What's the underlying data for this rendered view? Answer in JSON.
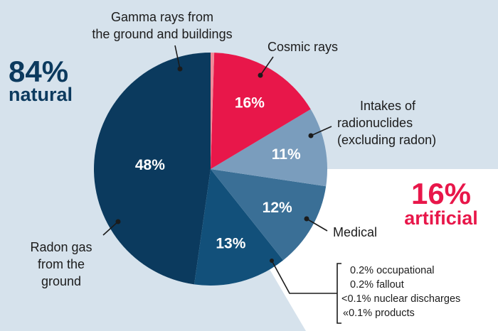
{
  "chart_data": {
    "type": "pie",
    "start_angle_deg": 90,
    "direction": "counterclockwise",
    "slices": [
      {
        "label": "Radon gas from the ground",
        "value": 48,
        "display": "48%",
        "color": "#0b3a5e",
        "group": "natural"
      },
      {
        "label": "Gamma rays from the ground and buildings",
        "value": 13,
        "display": "13%",
        "color": "#12507a",
        "group": "natural"
      },
      {
        "label": "Cosmic rays",
        "value": 12,
        "display": "12%",
        "color": "#3a6f96",
        "group": "natural"
      },
      {
        "label": "Intakes of radionuclides (excluding radon)",
        "value": 11,
        "display": "11%",
        "color": "#7a9dbd",
        "group": "natural"
      },
      {
        "label": "Medical",
        "value": 16,
        "display": "16%",
        "color": "#e8174a",
        "group": "artificial"
      },
      {
        "label": "Occupational, fallout, nuclear discharges, products",
        "value": 0.5,
        "display": "",
        "color": "#f08a98",
        "group": "artificial"
      }
    ],
    "groups": {
      "natural": {
        "percent": "84%",
        "word": "natural"
      },
      "artificial": {
        "percent": "16%",
        "word": "artificial"
      }
    },
    "callouts": {
      "gamma": [
        "Gamma rays from",
        "the ground and buildings"
      ],
      "cosmic": [
        "Cosmic rays"
      ],
      "intakes": [
        "Intakes of",
        "radionuclides",
        "(excluding radon)"
      ],
      "medical": [
        "Medical"
      ],
      "radon": [
        "Radon gas",
        "from the",
        "ground"
      ],
      "minor": [
        "0.2% occupational",
        "0.2% fallout",
        "<0.1% nuclear discharges",
        "«0.1% products"
      ]
    }
  },
  "colors": {
    "background": "#d6e2ec",
    "artificial_background": "#ffffff",
    "natural_text": "#0c3a5e",
    "artificial_text": "#e8174a"
  }
}
